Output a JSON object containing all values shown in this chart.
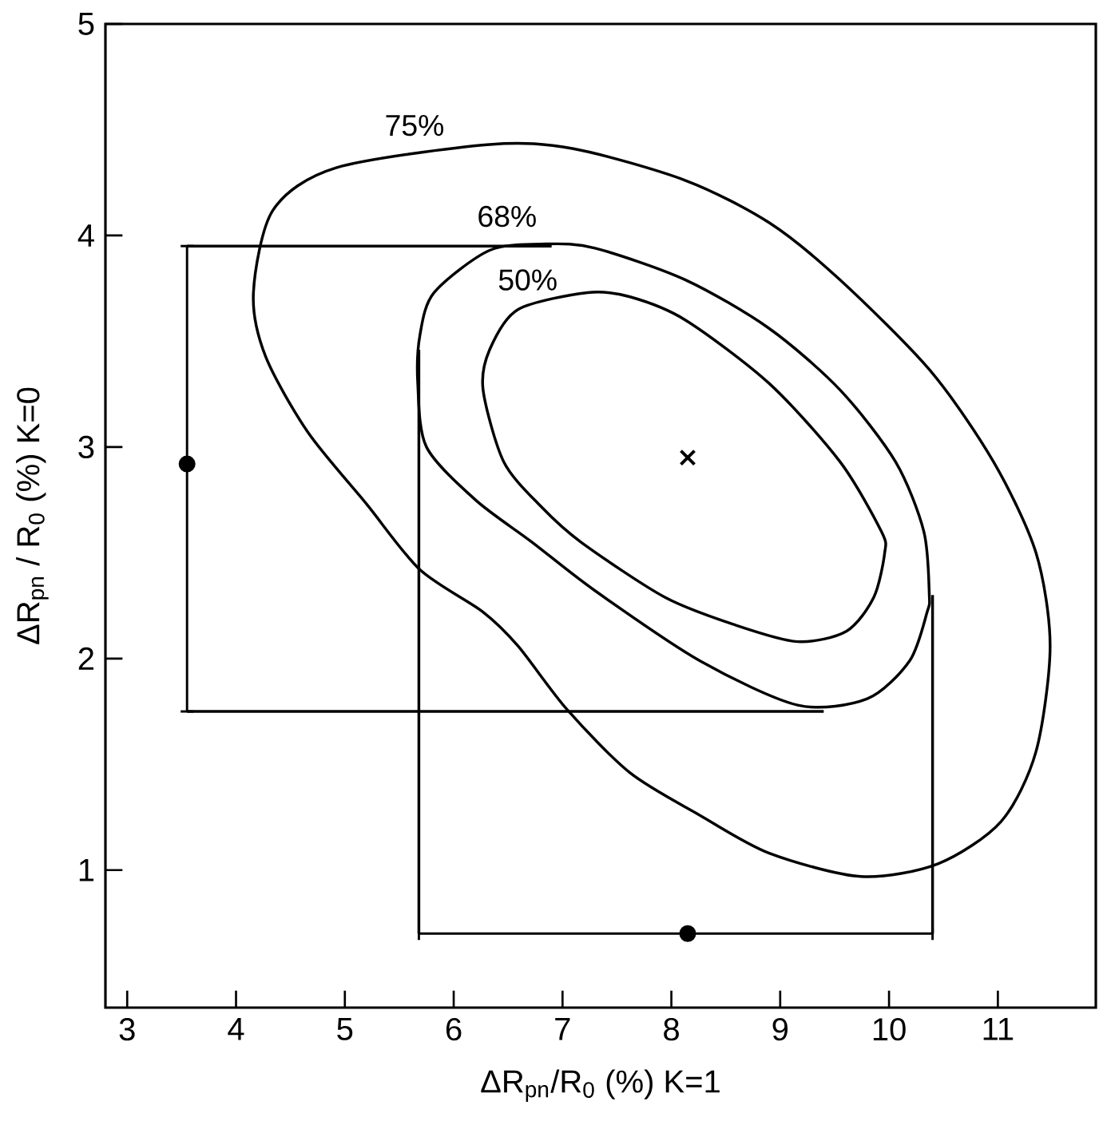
{
  "chart_data": {
    "type": "line",
    "xlabel": "ΔR$_{pn}$/R$_{0}$ (%)  K=1",
    "ylabel": "ΔR$_{pn}$ / R$_{0}$ (%)  K=0",
    "xlim": [
      2.8,
      11.9
    ],
    "ylim": [
      0.35,
      5.0
    ],
    "xticks": [
      3,
      4,
      5,
      6,
      7,
      8,
      9,
      10,
      11
    ],
    "yticks": [
      1,
      2,
      3,
      4,
      5
    ],
    "series": [
      {
        "color": "#000000",
        "x": [
          3.55,
          6.9
        ],
        "values": [
          3.95,
          3.95
        ]
      },
      {
        "color": "#000000",
        "x": [
          3.55,
          9.4
        ],
        "values": [
          1.75,
          1.75
        ]
      },
      {
        "color": "#000000",
        "x": [
          5.68,
          5.68
        ],
        "values": [
          3.46,
          0.7
        ]
      },
      {
        "color": "#000000",
        "x": [
          10.4,
          10.4
        ],
        "values": [
          2.3,
          0.7
        ]
      },
      {
        "type": "scatter",
        "marker": "cross",
        "color": "#000000",
        "x": [
          8.15
        ],
        "values": [
          2.95
        ]
      },
      {
        "type": "scatter",
        "marker": "circle",
        "color": "#000000",
        "x": [
          3.55
        ],
        "values": [
          2.92
        ],
        "errors": [
          [
            1.75,
            3.95
          ]
        ]
      },
      {
        "type": "scatter",
        "marker": "circle",
        "color": "#000000",
        "x": [
          8.15
        ],
        "values": [
          0.7
        ],
        "xerrors": [
          [
            5.68,
            10.4
          ]
        ]
      }
    ],
    "annotations": [
      "75%",
      "68%",
      "50%"
    ]
  }
}
